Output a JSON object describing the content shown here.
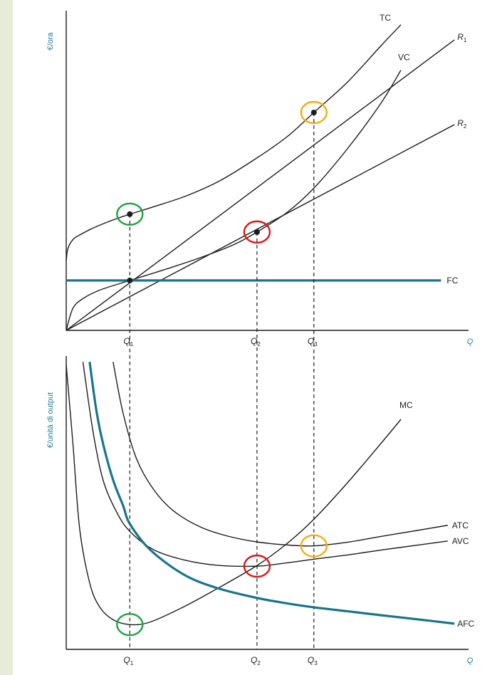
{
  "colors": {
    "curve": "#1c1c1c",
    "teal": "#17758c",
    "axis_label": "#1a7d94",
    "circle_green": "#20a040",
    "circle_red": "#d81818",
    "circle_orange": "#f2ad10",
    "side_bg": "#e6ecd6"
  },
  "chart_data": [
    {
      "type": "line",
      "panel": "top",
      "ylabel": "€/ora",
      "xlabel": "Q",
      "x_ticks": [
        {
          "base": "Q",
          "sub": "1",
          "x": 19
        },
        {
          "base": "Q",
          "sub": "2",
          "x": 57
        },
        {
          "base": "Q",
          "sub": "3",
          "x": 74
        }
      ],
      "x_range": [
        0,
        124
      ],
      "y_range": [
        0,
        100
      ],
      "series": [
        {
          "name": "TC",
          "points": [
            [
              0,
              23
            ],
            [
              0.5,
              27
            ],
            [
              2,
              30
            ],
            [
              4,
              31.5
            ],
            [
              8,
              33.8
            ],
            [
              14,
              36.5
            ],
            [
              19,
              38.4
            ],
            [
              26,
              40.8
            ],
            [
              36,
              44.5
            ],
            [
              46,
              49.5
            ],
            [
              57,
              57
            ],
            [
              66,
              64
            ],
            [
              74,
              72
            ],
            [
              84,
              82
            ],
            [
              94,
              94
            ],
            [
              100,
              101
            ]
          ]
        },
        {
          "name": "R1",
          "points": [
            [
              0,
              0
            ],
            [
              116,
              96
            ]
          ]
        },
        {
          "name": "VC",
          "points": [
            [
              0,
              0
            ],
            [
              2,
              7.3
            ],
            [
              5,
              10.5
            ],
            [
              10,
              13.3
            ],
            [
              19,
              16.5
            ],
            [
              30,
              20.3
            ],
            [
              40,
              24
            ],
            [
              50,
              28.3
            ],
            [
              57,
              32.5
            ],
            [
              66,
              39
            ],
            [
              74,
              47
            ],
            [
              84,
              60
            ],
            [
              94,
              75
            ],
            [
              100,
              86
            ]
          ]
        },
        {
          "name": "R2",
          "points": [
            [
              0,
              0
            ],
            [
              116,
              68
            ]
          ]
        },
        {
          "name": "FC",
          "points": [
            [
              0,
              16.5
            ],
            [
              112,
              16.5
            ]
          ]
        }
      ],
      "marked_points": [
        {
          "x": 19,
          "y": 38.4,
          "circle": "green"
        },
        {
          "x": 57,
          "y": 32.5,
          "circle": "red"
        },
        {
          "x": 74,
          "y": 72,
          "circle": "orange"
        },
        {
          "x": 19,
          "y": 16.5,
          "circle": null
        }
      ]
    },
    {
      "type": "line",
      "panel": "bottom",
      "ylabel": "€/unità di output",
      "xlabel": "Q",
      "x_ticks": [
        {
          "base": "Q",
          "sub": "1",
          "x": 19
        },
        {
          "base": "Q",
          "sub": "2",
          "x": 57
        },
        {
          "base": "Q",
          "sub": "3",
          "x": 74
        }
      ],
      "x_range": [
        0,
        124
      ],
      "y_range": [
        0,
        100
      ],
      "series": [
        {
          "name": "MC",
          "points": [
            [
              0,
              94
            ],
            [
              2,
              68
            ],
            [
              4,
              40
            ],
            [
              7,
              22
            ],
            [
              10,
              14
            ],
            [
              14,
              9.8
            ],
            [
              19,
              8.2
            ],
            [
              25,
              9
            ],
            [
              35,
              14
            ],
            [
              45,
              20
            ],
            [
              57,
              27.7
            ],
            [
              66,
              35
            ],
            [
              74,
              43
            ],
            [
              84,
              55
            ],
            [
              94,
              68
            ],
            [
              100,
              76
            ]
          ]
        },
        {
          "name": "ATC",
          "points": [
            [
              14,
              95
            ],
            [
              17,
              78
            ],
            [
              21,
              63
            ],
            [
              26,
              53
            ],
            [
              32,
              45.8
            ],
            [
              40,
              40.5
            ],
            [
              48,
              37.5
            ],
            [
              57,
              35.5
            ],
            [
              66,
              34.5
            ],
            [
              74,
              34.2
            ],
            [
              84,
              35.4
            ],
            [
              94,
              37.3
            ],
            [
              106,
              39.5
            ],
            [
              114,
              41
            ]
          ]
        },
        {
          "name": "AVC",
          "points": [
            [
              5,
              95
            ],
            [
              8,
              72
            ],
            [
              11,
              56
            ],
            [
              15,
              45.5
            ],
            [
              19,
              39
            ],
            [
              26,
              33
            ],
            [
              35,
              29.6
            ],
            [
              45,
              27.8
            ],
            [
              57,
              27.5
            ],
            [
              66,
              28.6
            ],
            [
              74,
              29.8
            ],
            [
              84,
              31.2
            ],
            [
              94,
              32.8
            ],
            [
              106,
              34.6
            ],
            [
              114,
              35.8
            ]
          ]
        },
        {
          "name": "AFC",
          "points": [
            [
              7,
              95
            ],
            [
              9,
              79
            ],
            [
              11,
              68
            ],
            [
              14,
              56
            ],
            [
              17,
              47.5
            ],
            [
              19,
              41.5
            ],
            [
              25,
              33
            ],
            [
              35,
              24.8
            ],
            [
              45,
              20.3
            ],
            [
              57,
              17
            ],
            [
              66,
              15.2
            ],
            [
              74,
              13.9
            ],
            [
              84,
              12.6
            ],
            [
              94,
              11.3
            ],
            [
              106,
              9.8
            ],
            [
              116,
              8.5
            ]
          ]
        }
      ],
      "marked_points": [
        {
          "x": 19,
          "y": 8.2,
          "circle": "green"
        },
        {
          "x": 57,
          "y": 27.5,
          "circle": "red"
        },
        {
          "x": 74,
          "y": 34.2,
          "circle": "orange"
        }
      ]
    }
  ]
}
